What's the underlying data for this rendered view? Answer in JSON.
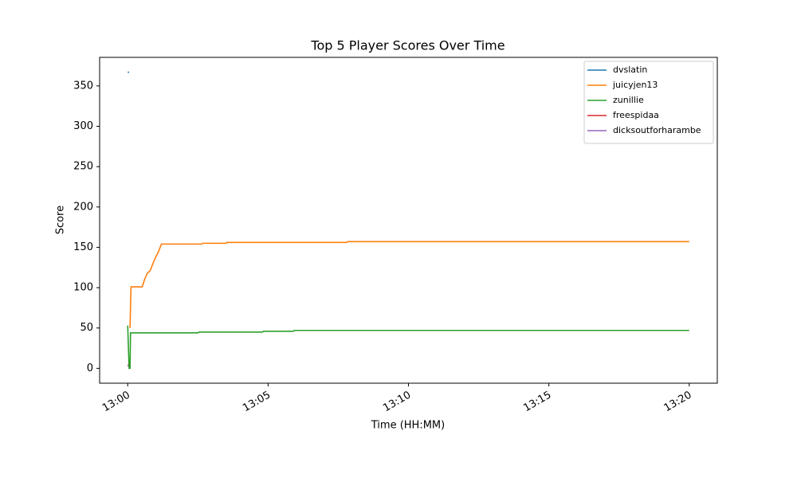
{
  "chart_data": {
    "type": "line",
    "title": "Top 5 Player Scores Over Time",
    "x_label": "Time (HH:MM)",
    "y_label": "Score",
    "xlim": [
      "12:59",
      "13:21"
    ],
    "xticks": [
      "13:00",
      "13:05",
      "13:10",
      "13:15",
      "13:20"
    ],
    "ylim": [
      -18.4,
      385.4
    ],
    "yticks": [
      0,
      50,
      100,
      150,
      200,
      250,
      300,
      350
    ],
    "grid": false,
    "legend": "upper right",
    "series": [
      {
        "name": "dvslatin",
        "color": "#1f77b4",
        "x": [
          "13:00:00",
          "13:00:03"
        ],
        "values": [
          367,
          367
        ]
      },
      {
        "name": "juicyjen13",
        "color": "#ff7f0e",
        "x": [
          "13:00:05",
          "13:00:07",
          "13:00:31",
          "13:00:36",
          "13:00:42",
          "13:00:48",
          "13:00:54",
          "13:01:00",
          "13:01:06",
          "13:01:12",
          "13:02:38",
          "13:02:40",
          "13:03:30",
          "13:03:32",
          "13:07:48",
          "13:07:50",
          "13:20:00"
        ],
        "values": [
          50,
          101,
          101,
          110,
          118,
          121,
          130,
          138,
          145,
          154,
          154,
          155,
          155,
          156,
          156,
          157,
          157
        ]
      },
      {
        "name": "zunillie",
        "color": "#2ca02c",
        "x": [
          "13:00:00",
          "13:00:03",
          "13:00:05",
          "13:00:06",
          "13:02:30",
          "13:02:32",
          "13:04:48",
          "13:04:50",
          "13:05:54",
          "13:05:56",
          "13:20:00"
        ],
        "values": [
          53,
          0,
          0,
          44,
          44,
          45,
          45,
          46,
          46,
          47,
          47
        ]
      },
      {
        "name": "freespidaa",
        "color": "#d62728",
        "x": [
          "13:00:00",
          "13:00:02"
        ],
        "values": [
          4,
          4
        ]
      },
      {
        "name": "dicksoutforharambe",
        "color": "#9467bd",
        "x": [
          "13:00:00",
          "13:00:02"
        ],
        "values": [
          3,
          3
        ]
      }
    ]
  }
}
